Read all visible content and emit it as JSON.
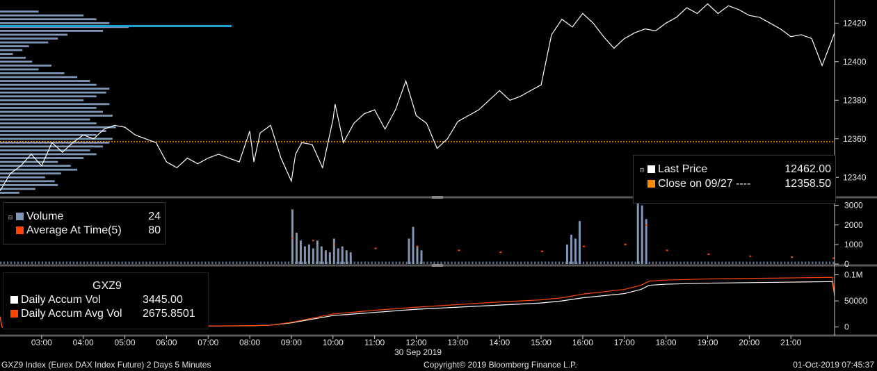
{
  "chart_data": [
    {
      "type": "line",
      "panel": "price",
      "ylim": [
        12330,
        12432
      ],
      "y_ticks": [
        "12420",
        "12400",
        "12380",
        "12360",
        "12340"
      ],
      "reference_line": {
        "value": 12358.5,
        "color": "#ff8c00",
        "style": "dotted"
      },
      "max_volume_level": {
        "value": 12418.5,
        "color": "#1ea0d6"
      },
      "series": [
        {
          "name": "Last Price",
          "color": "#ffffff",
          "x_hours": [
            2.0,
            2.25,
            2.5,
            2.75,
            3.0,
            3.25,
            3.5,
            3.75,
            4.0,
            4.25,
            4.5,
            4.75,
            5.0,
            5.25,
            5.5,
            5.75,
            6.0,
            6.25,
            6.5,
            6.75,
            7.0,
            7.25,
            7.5,
            7.75,
            8.0,
            8.1,
            8.25,
            8.5,
            8.75,
            9.0,
            9.1,
            9.25,
            9.5,
            9.75,
            10.0,
            10.05,
            10.25,
            10.5,
            10.75,
            11.0,
            11.25,
            11.5,
            11.75,
            12.0,
            12.25,
            12.5,
            12.75,
            13.0,
            13.25,
            13.5,
            13.75,
            14.0,
            14.25,
            14.5,
            14.75,
            15.0,
            15.25,
            15.5,
            15.75,
            16.0,
            16.25,
            16.5,
            16.75,
            17.0,
            17.25,
            17.5,
            17.75,
            18.0,
            18.25,
            18.5,
            18.75,
            19.0,
            19.25,
            19.5,
            19.75,
            20.0,
            20.25,
            20.5,
            20.75,
            21.0,
            21.25,
            21.5,
            21.75,
            22.0,
            22.05
          ],
          "values": [
            12333,
            12342,
            12346,
            12352,
            12346,
            12358,
            12353,
            12358,
            12362,
            12360,
            12365,
            12367,
            12366,
            12362,
            12360,
            12358,
            12348,
            12345,
            12350,
            12347,
            12350,
            12352,
            12350,
            12348,
            12364,
            12348,
            12363,
            12367,
            12350,
            12338,
            12352,
            12358,
            12357,
            12345,
            12370,
            12378,
            12358,
            12368,
            12373,
            12375,
            12365,
            12375,
            12390,
            12372,
            12368,
            12355,
            12360,
            12369,
            12372,
            12375,
            12380,
            12385,
            12380,
            12382,
            12385,
            12388,
            12414,
            12422,
            12418,
            12425,
            12420,
            12413,
            12407,
            12412,
            12415,
            12417,
            12416,
            12420,
            12423,
            12428,
            12425,
            12430,
            12425,
            12429,
            12427,
            12424,
            12423,
            12420,
            12417,
            12413,
            12414,
            12412,
            12398,
            12412,
            12415
          ]
        }
      ],
      "legend": [
        {
          "label": "Last Price",
          "value": "12462.00",
          "color": "#ffffff"
        },
        {
          "label": "Close on 09/27 ---- ",
          "value": "12358.50",
          "color": "#ff8c00"
        }
      ],
      "volume_profile": {
        "color": "#7f96b6",
        "levels": [
          12332,
          12334,
          12336,
          12338,
          12340,
          12342,
          12344,
          12346,
          12348,
          12350,
          12352,
          12354,
          12356,
          12358,
          12360,
          12362,
          12364,
          12366,
          12368,
          12370,
          12372,
          12374,
          12376,
          12378,
          12380,
          12382,
          12384,
          12386,
          12388,
          12390,
          12392,
          12394,
          12396,
          12398,
          12400,
          12402,
          12404,
          12406,
          12408,
          12410,
          12412,
          12414,
          12416,
          12418,
          12420,
          12422,
          12424,
          12426
        ],
        "volumes": [
          30,
          55,
          90,
          85,
          70,
          95,
          120,
          110,
          90,
          130,
          150,
          140,
          160,
          170,
          175,
          150,
          165,
          180,
          150,
          140,
          175,
          160,
          150,
          170,
          130,
          150,
          165,
          170,
          150,
          140,
          120,
          100,
          60,
          80,
          50,
          40,
          20,
          35,
          45,
          75,
          90,
          105,
          160,
          200,
          170,
          150,
          130,
          60
        ]
      }
    },
    {
      "type": "bar",
      "panel": "volume",
      "ylim": [
        0,
        3200
      ],
      "y_ticks": [
        "3000",
        "2000",
        "1000",
        "0"
      ],
      "series": [
        {
          "name": "Volume",
          "color": "#7f96b6",
          "x_hours": [
            9.0,
            9.1,
            9.2,
            9.3,
            9.4,
            9.5,
            9.6,
            9.7,
            9.8,
            9.9,
            10.0,
            10.1,
            10.2,
            10.3,
            10.4,
            11.8,
            11.9,
            12.0,
            12.1,
            15.6,
            15.7,
            15.8,
            15.9,
            17.3,
            17.4,
            17.5
          ],
          "values": [
            2800,
            1600,
            1200,
            900,
            1000,
            800,
            1200,
            900,
            700,
            600,
            1300,
            800,
            900,
            700,
            600,
            1300,
            1900,
            900,
            700,
            1000,
            1500,
            1300,
            2200,
            3300,
            3000,
            2300
          ]
        },
        {
          "name": "Average At Time(5)",
          "color": "#ff4500",
          "x_hours": [
            9.0,
            9.5,
            10.0,
            11.0,
            12.0,
            13.0,
            14.0,
            15.0,
            16.0,
            17.0,
            17.5,
            18.0,
            19.0,
            20.0,
            21.0,
            22.0
          ],
          "values": [
            1300,
            1200,
            1000,
            800,
            900,
            700,
            600,
            650,
            900,
            1000,
            2000,
            700,
            500,
            400,
            350,
            300
          ]
        }
      ],
      "baseline_before_open": 120,
      "legend": [
        {
          "label": "Volume",
          "value": "24",
          "color": "#7f96b6"
        },
        {
          "label": "Average At Time(5)",
          "value": "80",
          "color": "#ff4500"
        }
      ]
    },
    {
      "type": "line",
      "panel": "accumulated",
      "ylim": [
        -15000,
        110000
      ],
      "y_ticks": [
        "0.1M",
        "50000",
        "0"
      ],
      "series": [
        {
          "name": "Daily Accum Vol",
          "color": "#ffffff",
          "x_hours": [
            2.0,
            2.05,
            3.0,
            4.0,
            5.0,
            6.0,
            7.0,
            8.0,
            8.5,
            9.0,
            9.5,
            10.0,
            11.0,
            12.0,
            13.0,
            14.0,
            15.0,
            15.5,
            16.0,
            17.0,
            17.4,
            17.6,
            18.0,
            19.0,
            20.0,
            21.0,
            22.0,
            22.05
          ],
          "values": [
            20000,
            0,
            300,
            700,
            1100,
            1500,
            1900,
            2500,
            3500,
            8000,
            15000,
            22000,
            28000,
            34000,
            38000,
            42000,
            46000,
            50000,
            56000,
            64000,
            72000,
            80000,
            82000,
            84000,
            85000,
            86000,
            87000,
            60000
          ]
        },
        {
          "name": "Daily Accum Avg Vol",
          "color": "#ff4500",
          "x_hours": [
            2.0,
            2.05,
            3.0,
            4.0,
            5.0,
            6.0,
            7.0,
            8.0,
            8.5,
            9.0,
            9.5,
            10.0,
            11.0,
            12.0,
            13.0,
            14.0,
            15.0,
            15.5,
            16.0,
            17.0,
            17.4,
            17.6,
            18.0,
            19.0,
            20.0,
            21.0,
            22.0,
            22.05
          ],
          "values": [
            20000,
            0,
            400,
            800,
            1200,
            1600,
            2000,
            2600,
            3600,
            9000,
            17000,
            25000,
            32000,
            38000,
            43000,
            48000,
            52000,
            56000,
            63000,
            72000,
            80000,
            88000,
            90000,
            92000,
            93000,
            94000,
            95000,
            62000
          ]
        }
      ],
      "legend_title": "GXZ9",
      "legend": [
        {
          "label": "Daily Accum Vol",
          "value": "3445.00",
          "color": "#ffffff"
        },
        {
          "label": "Daily Accum Avg Vol",
          "value": "2675.8501",
          "color": "#ff4500"
        }
      ]
    }
  ],
  "x_axis": {
    "ticks": [
      "03:00",
      "04:00",
      "05:00",
      "06:00",
      "07:00",
      "08:00",
      "09:00",
      "10:00",
      "11:00",
      "12:00",
      "13:00",
      "14:00",
      "15:00",
      "16:00",
      "17:00",
      "18:00",
      "19:00",
      "20:00",
      "21:00"
    ],
    "date_label": "30 Sep 2019"
  },
  "footer": {
    "left": "GXZ9 Index (Eurex DAX Index Future) 2 Days 5 Minutes",
    "center": "Copyright© 2019 Bloomberg Finance L.P.",
    "right": "01-Oct-2019 07:45:37"
  }
}
